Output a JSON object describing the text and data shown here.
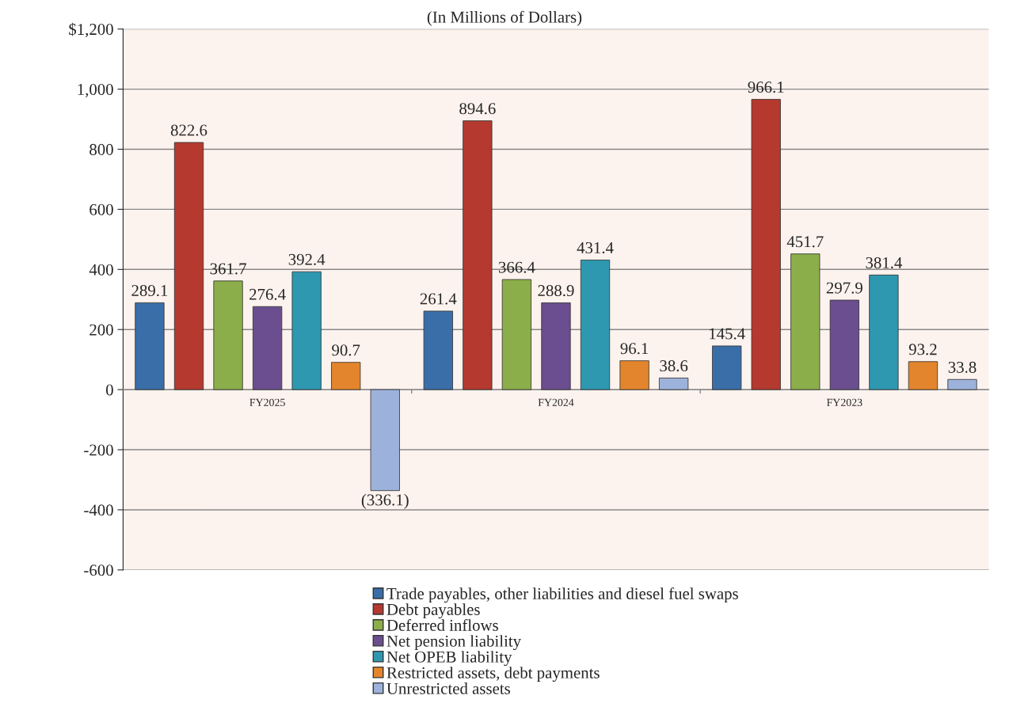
{
  "chart_data": {
    "type": "bar",
    "title": "(In Millions of Dollars)",
    "categories": [
      "FY2025",
      "FY2024",
      "FY2023"
    ],
    "series": [
      {
        "name": "Trade payables, other liabilities and diesel fuel swaps",
        "color": "#3a6ea8",
        "values": [
          289.1,
          261.4,
          145.4
        ],
        "value_labels": [
          "289.1",
          "261.4",
          "145.4"
        ]
      },
      {
        "name": "Debt payables",
        "color": "#b5392f",
        "values": [
          822.6,
          894.6,
          966.1
        ],
        "value_labels": [
          "822.6",
          "894.6",
          "966.1"
        ]
      },
      {
        "name": "Deferred inflows",
        "color": "#8cae4a",
        "values": [
          361.7,
          366.4,
          451.7
        ],
        "value_labels": [
          "361.7",
          "366.4",
          "451.7"
        ]
      },
      {
        "name": "Net pension liability",
        "color": "#6b4e8f",
        "values": [
          276.4,
          288.9,
          297.9
        ],
        "value_labels": [
          "276.4",
          "288.9",
          "297.9"
        ]
      },
      {
        "name": "Net OPEB liability",
        "color": "#2e98b0",
        "values": [
          392.4,
          431.4,
          381.4
        ],
        "value_labels": [
          "392.4",
          "431.4",
          "381.4"
        ]
      },
      {
        "name": "Restricted assets, debt payments",
        "color": "#e3852c",
        "values": [
          90.7,
          96.1,
          93.2
        ],
        "value_labels": [
          "90.7",
          "96.1",
          "93.2"
        ]
      },
      {
        "name": "Unrestricted assets",
        "color": "#9db2db",
        "values": [
          -336.1,
          38.6,
          33.8
        ],
        "value_labels": [
          "(336.1)",
          "38.6",
          "33.8"
        ]
      }
    ],
    "ylim": [
      -600,
      1200
    ],
    "yticks": [
      -600,
      -400,
      -200,
      0,
      200,
      400,
      600,
      800,
      {
        "value": 1000,
        "label": "1,000"
      },
      {
        "value": 1200,
        "label": "$1,200"
      }
    ],
    "grid": "y",
    "legend": "bottom"
  }
}
